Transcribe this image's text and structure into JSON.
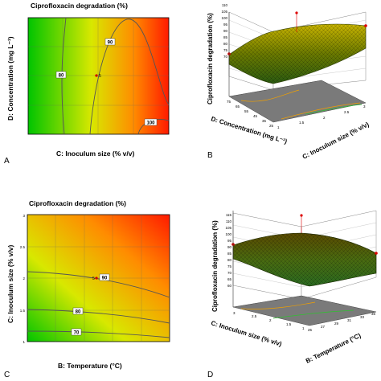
{
  "panels": {
    "A": {
      "label": "A",
      "title": "Ciprofloxacin degradation (%)",
      "xlabel": "C: Inoculum size  (% v/v)",
      "ylabel": "D: Concentration  (mg L⁻¹)"
    },
    "B": {
      "label": "B",
      "zlabel": "Ciprofloxacin degradation (%)",
      "xlabel": "C: Inoculum size  (% v/v)",
      "ylabel": "D: Concentration  (mg L⁻¹)"
    },
    "C": {
      "label": "C",
      "title": "Ciprofloxacin degradation (%)",
      "xlabel": "B: Temperature  (°C)",
      "ylabel": "C: Inoculum size  (% v/v)"
    },
    "D": {
      "label": "D",
      "zlabel": "Ciprofloxacin degradation (%)",
      "xlabel": "B: Temperature  (°C)",
      "ylabel": "C: Inoculum size  (% v/v)"
    }
  },
  "chart_data": [
    {
      "panel": "A",
      "type": "heatmap",
      "title": "Ciprofloxacin degradation (%)",
      "xlabel": "C: Inoculum size  (% v/v)",
      "ylabel": "D: Concentration  (mg L⁻¹)",
      "contours": [
        {
          "level": 80,
          "label": "80"
        },
        {
          "level": 90,
          "label": "90"
        },
        {
          "level": 100,
          "label": "100"
        }
      ],
      "design_point_label": "5",
      "colormap": [
        "#00c400",
        "#e8e800",
        "#ff0000"
      ]
    },
    {
      "panel": "B",
      "type": "surface3d",
      "zlabel": "Ciprofloxacin degradation (%)",
      "xlabel": "C: Inoculum size  (% v/v)",
      "ylabel": "D: Concentration  (mg L⁻¹)",
      "z_ticks": [
        "70",
        "75",
        "80",
        "85",
        "90",
        "95",
        "100",
        "105",
        "110",
        "115"
      ],
      "x_ticks": [
        "1",
        "1.5",
        "2",
        "2.5",
        "3"
      ],
      "y_ticks": [
        "25",
        "35",
        "45",
        "55",
        "65",
        "75"
      ]
    },
    {
      "panel": "C",
      "type": "heatmap",
      "title": "Ciprofloxacin degradation (%)",
      "xlabel": "B: Temperature  (°C)",
      "ylabel": "C: Inoculum size  (% v/v)",
      "y_ticks": [
        "3",
        "2.5",
        "2",
        "1.5",
        "1"
      ],
      "contours": [
        {
          "level": 90,
          "label": "90"
        },
        {
          "level": 80,
          "label": "80"
        },
        {
          "level": 70,
          "label": "70"
        }
      ],
      "design_point_label": "5",
      "colormap": [
        "#00c400",
        "#e8e800",
        "#ff0000"
      ]
    },
    {
      "panel": "D",
      "type": "surface3d",
      "zlabel": "Ciprofloxacin degradation (%)",
      "xlabel": "B: Temperature  (°C)",
      "ylabel": "C: Inoculum size  (% v/v)",
      "z_ticks": [
        "60",
        "65",
        "70",
        "75",
        "80",
        "85",
        "90",
        "95",
        "100",
        "105",
        "110",
        "115"
      ],
      "x_ticks": [
        "25",
        "27",
        "29",
        "31",
        "33",
        "35"
      ],
      "y_ticks": [
        "1",
        "1.5",
        "2",
        "2.5",
        "3"
      ]
    }
  ]
}
